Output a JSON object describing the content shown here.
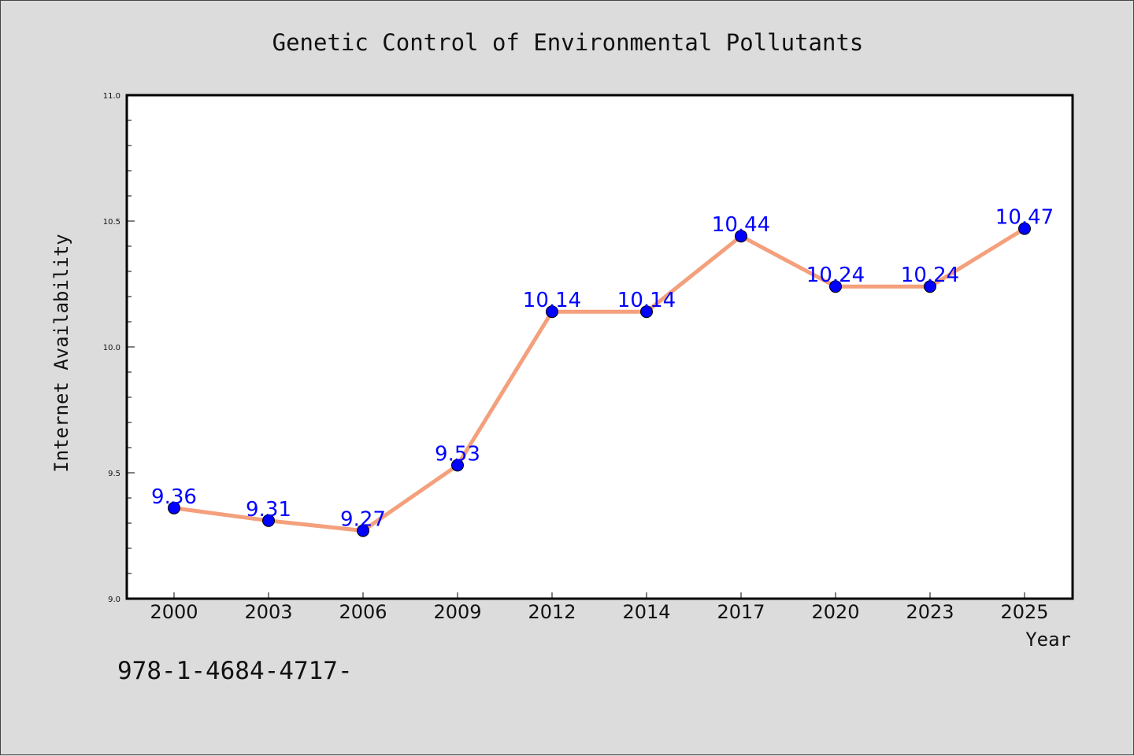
{
  "chart_data": {
    "type": "line",
    "title": "Genetic Control of Environmental Pollutants",
    "xlabel": "Year",
    "ylabel": "Internet Availability",
    "categories": [
      "2000",
      "2003",
      "2006",
      "2009",
      "2012",
      "2014",
      "2017",
      "2020",
      "2023",
      "2025"
    ],
    "series": [
      {
        "values": [
          9.36,
          9.31,
          9.27,
          9.53,
          10.14,
          10.14,
          10.44,
          10.24,
          10.24,
          10.47
        ],
        "data_labels": [
          "9.36",
          "9.31",
          "9.27",
          "9.53",
          "10.14",
          "10.14",
          "10.44",
          "10.24",
          "10.24",
          "10.47"
        ],
        "line_color": "#f4a07c",
        "marker_color": "#0000ff"
      }
    ],
    "ylim": [
      9.0,
      11.0
    ],
    "yticks": [
      "9.0",
      "9.5",
      "10.0",
      "10.5",
      "11.0"
    ],
    "grid": false,
    "footnote": "978-1-4684-4717-"
  }
}
